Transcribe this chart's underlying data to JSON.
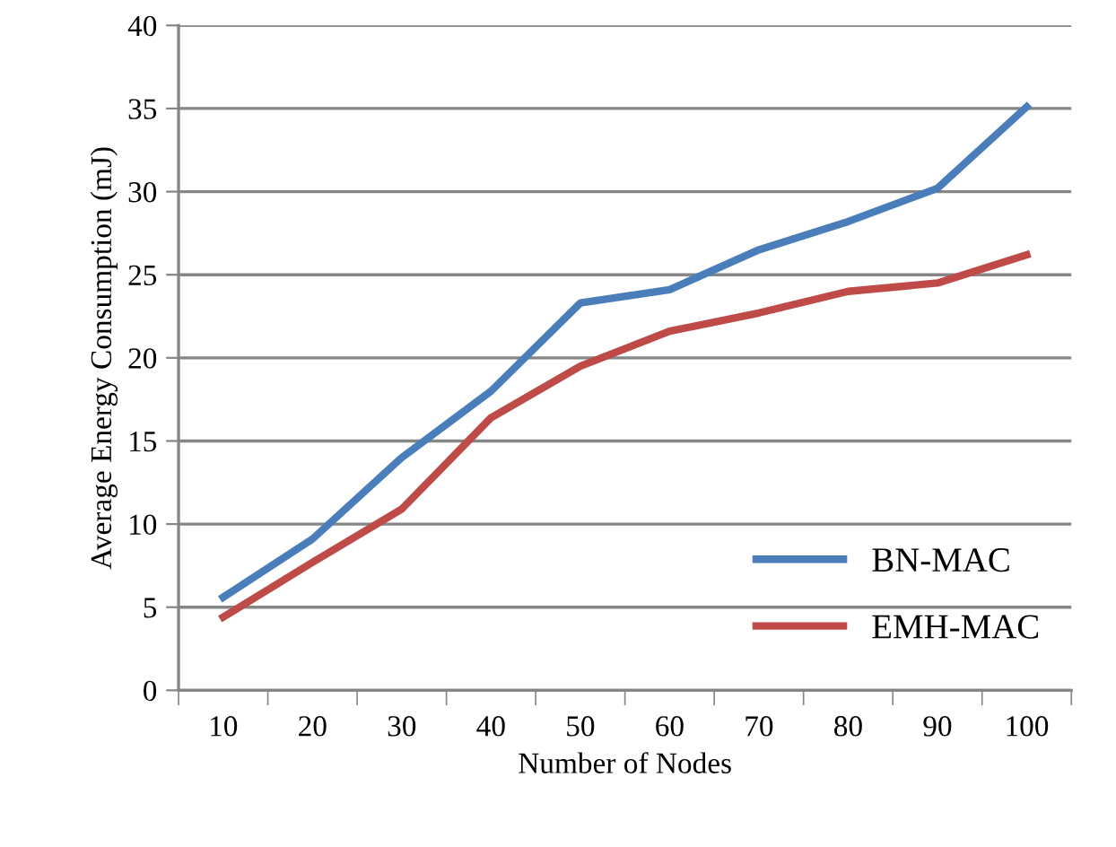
{
  "chart_data": {
    "type": "line",
    "xlabel": "Number of Nodes",
    "ylabel": "Average Energy Consumption (mJ)",
    "categories": [
      "10",
      "20",
      "30",
      "40",
      "50",
      "60",
      "70",
      "80",
      "90",
      "100"
    ],
    "series": [
      {
        "name": "BN-MAC",
        "color": "#4a7ebb",
        "values": [
          5.6,
          9.1,
          14.0,
          18.0,
          23.3,
          24.1,
          26.5,
          28.2,
          30.2,
          35.1
        ]
      },
      {
        "name": "EMH-MAC",
        "color": "#be4b48",
        "values": [
          4.4,
          7.7,
          10.9,
          16.4,
          19.5,
          21.6,
          22.7,
          24.0,
          24.5,
          26.2
        ]
      }
    ],
    "ylim": [
      0,
      40
    ],
    "yticks": [
      0,
      5,
      10,
      15,
      20,
      25,
      30,
      35,
      40
    ],
    "grid": "y",
    "legend": "bottom right",
    "marker": "none",
    "line_style": "solid"
  }
}
